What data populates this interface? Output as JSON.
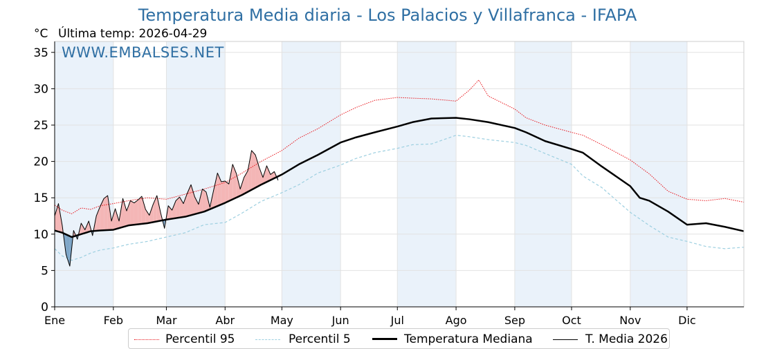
{
  "title": "Temperatura Media diaria - Los Palacios y Villafranca - IFAPA",
  "unit_label": "°C",
  "last_temp_label": "Última temp: 2026-04-29",
  "watermark": "WWW.EMBALSES.NET",
  "colors": {
    "p95": "#e8141a",
    "p5": "#9ccfe0",
    "median": "#000000",
    "current": "#000000",
    "above_fill": "#f4b6b6",
    "below_fill": "#7ea6c8",
    "band": "#eaf2fa",
    "title": "#2f6fa3"
  },
  "legend": [
    {
      "key": "p95",
      "label": "Percentil 95",
      "style": "dotted-red"
    },
    {
      "key": "p5",
      "label": "Percentil 5",
      "style": "dashed-lightblue"
    },
    {
      "key": "median",
      "label": "Temperatura Mediana",
      "style": "thick-black"
    },
    {
      "key": "current",
      "label": "T. Media 2026",
      "style": "thin-black"
    }
  ],
  "chart_data": {
    "type": "line",
    "x_unit": "day_of_year",
    "xlim": [
      1,
      365
    ],
    "ylim": [
      0,
      36.5
    ],
    "y_ticks": [
      0,
      5,
      10,
      15,
      20,
      25,
      30,
      35
    ],
    "x_ticks": [
      {
        "label": "Ene",
        "day": 1
      },
      {
        "label": "Feb",
        "day": 32
      },
      {
        "label": "Mar",
        "day": 60
      },
      {
        "label": "Abr",
        "day": 91
      },
      {
        "label": "May",
        "day": 121
      },
      {
        "label": "Jun",
        "day": 152
      },
      {
        "label": "Jul",
        "day": 182
      },
      {
        "label": "Ago",
        "day": 213
      },
      {
        "label": "Sep",
        "day": 244
      },
      {
        "label": "Oct",
        "day": 274
      },
      {
        "label": "Nov",
        "day": 305
      },
      {
        "label": "Dic",
        "day": 335
      }
    ],
    "grid": true,
    "legend_position": "bottom",
    "series": [
      {
        "key": "p95",
        "name": "Percentil 95",
        "x": [
          1,
          5,
          10,
          15,
          20,
          25,
          32,
          40,
          50,
          60,
          70,
          80,
          91,
          100,
          110,
          121,
          130,
          140,
          152,
          160,
          170,
          182,
          190,
          200,
          213,
          220,
          225,
          230,
          244,
          250,
          260,
          274,
          280,
          290,
          305,
          315,
          325,
          335,
          345,
          355,
          365
        ],
        "y": [
          14,
          13.3,
          12.8,
          13.6,
          13.4,
          13.9,
          14.2,
          14.6,
          15,
          14.8,
          15.5,
          16.2,
          17.1,
          18.4,
          20,
          21.5,
          23.2,
          24.5,
          26.4,
          27.4,
          28.4,
          28.8,
          28.7,
          28.6,
          28.3,
          29.8,
          31.2,
          29,
          27.2,
          26,
          25,
          24,
          23.6,
          22.3,
          20.2,
          18.3,
          15.9,
          14.8,
          14.6,
          14.9,
          14.4
        ]
      },
      {
        "key": "p5",
        "name": "Percentil 5",
        "x": [
          1,
          5,
          10,
          15,
          20,
          25,
          32,
          40,
          50,
          60,
          70,
          80,
          91,
          100,
          110,
          121,
          130,
          140,
          152,
          160,
          170,
          182,
          190,
          200,
          213,
          220,
          230,
          244,
          250,
          260,
          274,
          280,
          290,
          305,
          315,
          325,
          335,
          345,
          355,
          365
        ],
        "y": [
          8,
          7,
          6.4,
          6.8,
          7.4,
          7.8,
          8.1,
          8.6,
          9,
          9.6,
          10.2,
          11.3,
          11.6,
          12.9,
          14.5,
          15.7,
          16.8,
          18.4,
          19.5,
          20.4,
          21.2,
          21.8,
          22.3,
          22.4,
          23.6,
          23.4,
          23,
          22.6,
          22.2,
          21.1,
          19.6,
          18,
          16.4,
          13,
          11.2,
          9.6,
          9,
          8.3,
          8,
          8.2
        ]
      },
      {
        "key": "median",
        "name": "Temperatura Mediana",
        "x": [
          1,
          5,
          10,
          15,
          20,
          25,
          32,
          40,
          50,
          60,
          70,
          80,
          91,
          100,
          110,
          121,
          130,
          140,
          152,
          160,
          170,
          182,
          190,
          200,
          213,
          220,
          230,
          244,
          250,
          260,
          274,
          280,
          290,
          305,
          310,
          315,
          325,
          335,
          345,
          355,
          365
        ],
        "y": [
          10.5,
          10.2,
          9.6,
          10,
          10.4,
          10.5,
          10.6,
          11.2,
          11.5,
          12,
          12.4,
          13.1,
          14.3,
          15.4,
          16.8,
          18.2,
          19.6,
          20.9,
          22.6,
          23.3,
          24,
          24.8,
          25.4,
          25.9,
          26,
          25.8,
          25.4,
          24.6,
          24,
          22.8,
          21.7,
          21.2,
          19.3,
          16.6,
          15,
          14.6,
          13.1,
          11.3,
          11.5,
          11,
          10.4
        ]
      },
      {
        "key": "current",
        "name": "T. Media 2026",
        "x": [
          1,
          3,
          5,
          7,
          9,
          11,
          13,
          15,
          17,
          19,
          21,
          23,
          25,
          27,
          29,
          31,
          33,
          35,
          37,
          39,
          41,
          43,
          45,
          47,
          49,
          51,
          53,
          55,
          57,
          59,
          61,
          63,
          65,
          67,
          69,
          71,
          73,
          75,
          77,
          79,
          81,
          83,
          85,
          87,
          89,
          91,
          93,
          95,
          97,
          99,
          101,
          103,
          105,
          107,
          109,
          111,
          113,
          115,
          117,
          119
        ],
        "y": [
          12.5,
          14.2,
          11.2,
          7.2,
          5.6,
          10.5,
          9.3,
          11.5,
          10.6,
          11.8,
          9.8,
          12.5,
          13.8,
          14.9,
          15.3,
          11.8,
          13.5,
          11.8,
          14.9,
          13.2,
          14.6,
          14.3,
          14.7,
          15.2,
          13.4,
          12.6,
          14.1,
          15.3,
          12.9,
          10.8,
          13.9,
          13.3,
          14.6,
          15.1,
          14.2,
          15.6,
          16.8,
          15.1,
          14.1,
          16.2,
          15.8,
          13.7,
          16.1,
          18.4,
          17.2,
          17.3,
          16.9,
          19.6,
          18.3,
          16.2,
          17.8,
          18.7,
          21.5,
          20.9,
          19.2,
          17.8,
          19.4,
          18.2,
          18.6,
          17.4
        ]
      }
    ]
  }
}
